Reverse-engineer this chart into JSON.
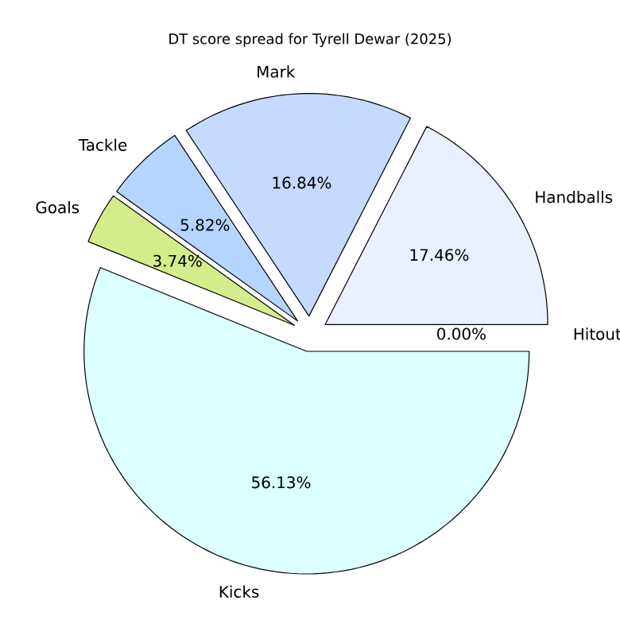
{
  "chart_data": {
    "type": "pie",
    "title": "DT score spread for Tyrell Dewar (2025)",
    "categories": [
      "Hitout",
      "Handballs",
      "Mark",
      "Tackle",
      "Goals",
      "Kicks"
    ],
    "values": [
      0.0,
      17.46,
      16.84,
      5.82,
      3.74,
      56.13
    ],
    "value_labels": [
      "0.00%",
      "17.46%",
      "16.84%",
      "5.82%",
      "3.74%",
      "56.13%"
    ],
    "colors": [
      "#ffd8d8",
      "#eaf0ff",
      "#c6d9ff",
      "#b5d5ff",
      "#d4ec8c",
      "#dcffff"
    ]
  }
}
